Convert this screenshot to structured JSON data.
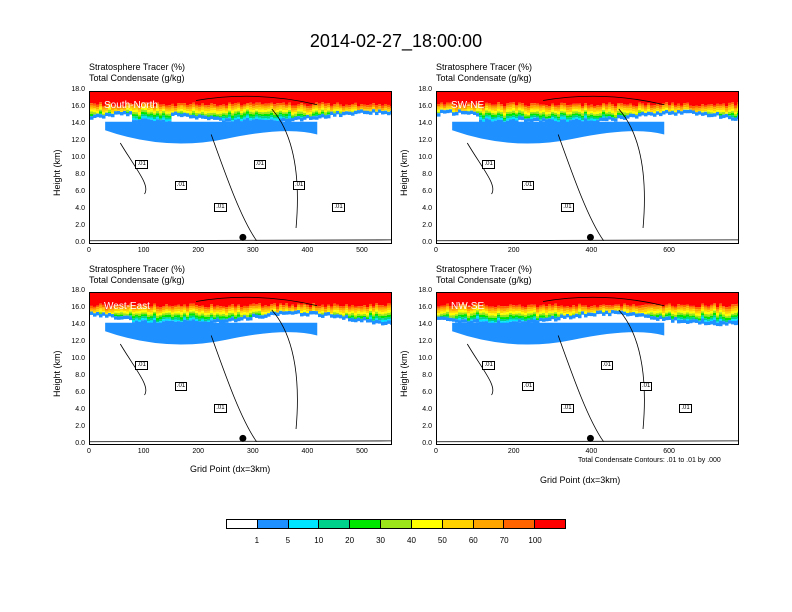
{
  "title": "2014-02-27_18:00:00",
  "legend_bar": {
    "colors": [
      "#ffffff",
      "#1e90ff",
      "#00e5ff",
      "#00d28c",
      "#00e600",
      "#9be51a",
      "#ffff00",
      "#ffd200",
      "#ffa500",
      "#ff6400",
      "#ff0000"
    ],
    "labels": [
      "1",
      "5",
      "10",
      "20",
      "30",
      "40",
      "50",
      "60",
      "70",
      "100"
    ]
  },
  "contour_note": "Total Condensate Contours: .01 to .01 by .000",
  "chart_data": [
    {
      "type": "heatmap",
      "region": "South-North",
      "header_line1": "Stratosphere Tracer   (%)",
      "header_line2": "Total Condensate   (g/kg)",
      "ylabel": "Height (km)",
      "xlabel": "",
      "yticks": [
        "0.0",
        "2.0",
        "4.0",
        "6.0",
        "8.0",
        "10.0",
        "12.0",
        "14.0",
        "16.0",
        "18.0"
      ],
      "xticks": [
        "0",
        "100",
        "200",
        "300",
        "400",
        "500"
      ],
      "xlim": [
        0,
        555
      ],
      "ylim": [
        0,
        18
      ],
      "contour_labels": [
        ".01",
        ".01",
        ".01",
        ".01",
        ".01",
        ".01"
      ],
      "marker_x": 280
    },
    {
      "type": "heatmap",
      "region": "SW-NE",
      "header_line1": "Stratosphere Tracer   (%)",
      "header_line2": "Total Condensate   (g/kg)",
      "ylabel": "Height (km)",
      "xlabel": "",
      "yticks": [
        "0.0",
        "2.0",
        "4.0",
        "6.0",
        "8.0",
        "10.0",
        "12.0",
        "14.0",
        "16.0",
        "18.0"
      ],
      "xticks": [
        "0",
        "200",
        "400",
        "600"
      ],
      "xlim": [
        0,
        780
      ],
      "ylim": [
        0,
        18
      ],
      "contour_labels": [
        ".01",
        ".01",
        ".01"
      ],
      "marker_x": 395
    },
    {
      "type": "heatmap",
      "region": "West-East",
      "header_line1": "Stratosphere Tracer   (%)",
      "header_line2": "Total Condensate   (g/kg)",
      "ylabel": "Height (km)",
      "xlabel": "Grid Point (dx=3km)",
      "yticks": [
        "0.0",
        "2.0",
        "4.0",
        "6.0",
        "8.0",
        "10.0",
        "12.0",
        "14.0",
        "16.0",
        "18.0"
      ],
      "xticks": [
        "0",
        "100",
        "200",
        "300",
        "400",
        "500"
      ],
      "xlim": [
        0,
        555
      ],
      "ylim": [
        0,
        18
      ],
      "contour_labels": [
        ".01",
        ".01",
        ".01"
      ],
      "marker_x": 280
    },
    {
      "type": "heatmap",
      "region": "NW-SE",
      "header_line1": "Stratosphere Tracer   (%)",
      "header_line2": "Total Condensate   (g/kg)",
      "ylabel": "Height (km)",
      "xlabel": "Grid Point (dx=3km)",
      "yticks": [
        "0.0",
        "2.0",
        "4.0",
        "6.0",
        "8.0",
        "10.0",
        "12.0",
        "14.0",
        "16.0",
        "18.0"
      ],
      "xticks": [
        "0",
        "200",
        "400",
        "600"
      ],
      "xlim": [
        0,
        780
      ],
      "ylim": [
        0,
        18
      ],
      "contour_labels": [
        ".01",
        ".01",
        ".01",
        ".01",
        ".01",
        ".01"
      ],
      "marker_x": 395
    }
  ]
}
